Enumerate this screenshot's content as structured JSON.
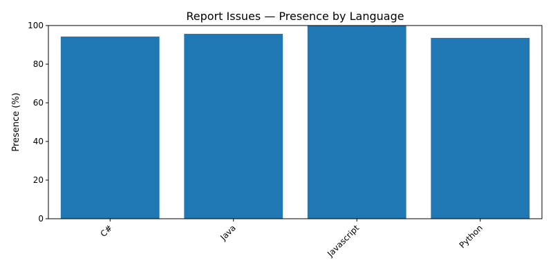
{
  "chart_data": {
    "type": "bar",
    "title": "Report Issues — Presence by Language",
    "xlabel": "",
    "ylabel": "Presence (%)",
    "categories": [
      "C#",
      "Java",
      "Javascript",
      "Python"
    ],
    "values": [
      94.3,
      95.7,
      100.0,
      93.6
    ],
    "ylim": [
      0,
      100
    ],
    "yticks": [
      0,
      20,
      40,
      60,
      80,
      100
    ],
    "bar_color": "#1f77b4",
    "grid": false,
    "legend": "none"
  }
}
